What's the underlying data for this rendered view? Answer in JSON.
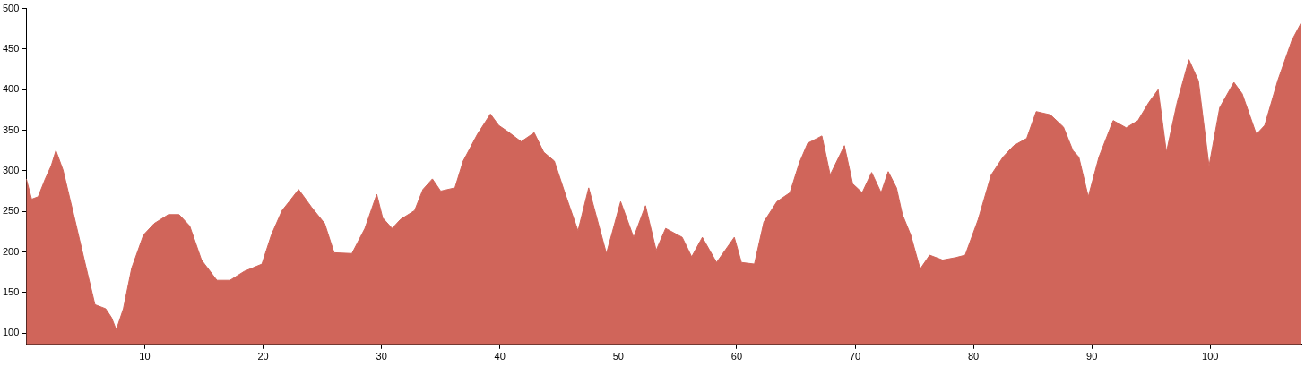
{
  "chart_data": {
    "type": "area",
    "color": "#d0655a",
    "grid": false,
    "legend": false,
    "marker": "none",
    "xlim": [
      0,
      107.7
    ],
    "xticks": [
      10,
      20,
      30,
      40,
      50,
      60,
      70,
      80,
      90,
      100
    ],
    "ylim": [
      86,
      500
    ],
    "yticks": [
      100,
      150,
      200,
      250,
      300,
      350,
      400,
      450,
      500
    ],
    "x": [
      0,
      0.45,
      1.0,
      1.6,
      2.1,
      2.5,
      3.1,
      4.0,
      4.9,
      5.8,
      6.7,
      7.2,
      7.6,
      8.2,
      8.9,
      9.9,
      10.8,
      12.0,
      12.9,
      13.8,
      14.8,
      16.1,
      17.2,
      18.4,
      19.9,
      20.7,
      21.6,
      22.2,
      23.0,
      24.1,
      25.2,
      26.0,
      27.5,
      28.6,
      29.6,
      30.1,
      30.9,
      31.6,
      32.8,
      33.5,
      34.3,
      35.0,
      36.2,
      36.9,
      38.1,
      39.2,
      39.9,
      40.7,
      41.8,
      42.9,
      43.7,
      44.6,
      45.6,
      46.6,
      47.5,
      49.0,
      50.2,
      51.3,
      52.3,
      53.2,
      54.0,
      55.4,
      56.2,
      57.1,
      58.3,
      59.8,
      60.4,
      61.5,
      62.3,
      63.4,
      64.5,
      65.3,
      66.0,
      67.2,
      67.9,
      69.1,
      69.8,
      70.6,
      71.4,
      72.2,
      72.8,
      73.5,
      74.0,
      74.7,
      75.5,
      76.3,
      77.4,
      78.5,
      79.3,
      80.4,
      81.5,
      82.5,
      83.4,
      84.5,
      85.3,
      86.5,
      87.6,
      88.4,
      88.9,
      89.7,
      90.6,
      91.8,
      92.9,
      93.9,
      94.8,
      95.6,
      96.3,
      97.2,
      98.2,
      99.0,
      99.9,
      100.8,
      102.0,
      102.7,
      103.9,
      104.6,
      105.7,
      106.9,
      107.7
    ],
    "values": [
      290,
      265,
      268,
      290,
      306,
      325,
      301,
      246,
      190,
      135,
      130,
      119,
      104,
      130,
      180,
      221,
      235,
      246,
      246,
      232,
      190,
      165,
      165,
      176,
      185,
      221,
      251,
      262,
      277,
      255,
      235,
      199,
      198,
      229,
      271,
      242,
      229,
      240,
      251,
      277,
      290,
      275,
      279,
      312,
      345,
      370,
      356,
      348,
      336,
      347,
      323,
      312,
      268,
      226,
      279,
      198,
      262,
      218,
      257,
      202,
      229,
      218,
      194,
      218,
      187,
      218,
      187,
      185,
      237,
      262,
      273,
      310,
      334,
      343,
      295,
      331,
      284,
      273,
      298,
      273,
      299,
      279,
      246,
      221,
      179,
      196,
      190,
      193,
      196,
      240,
      295,
      317,
      331,
      340,
      373,
      369,
      354,
      325,
      317,
      268,
      317,
      362,
      353,
      362,
      384,
      400,
      323,
      384,
      437,
      411,
      306,
      378,
      409,
      395,
      345,
      356,
      411,
      461,
      483
    ]
  }
}
